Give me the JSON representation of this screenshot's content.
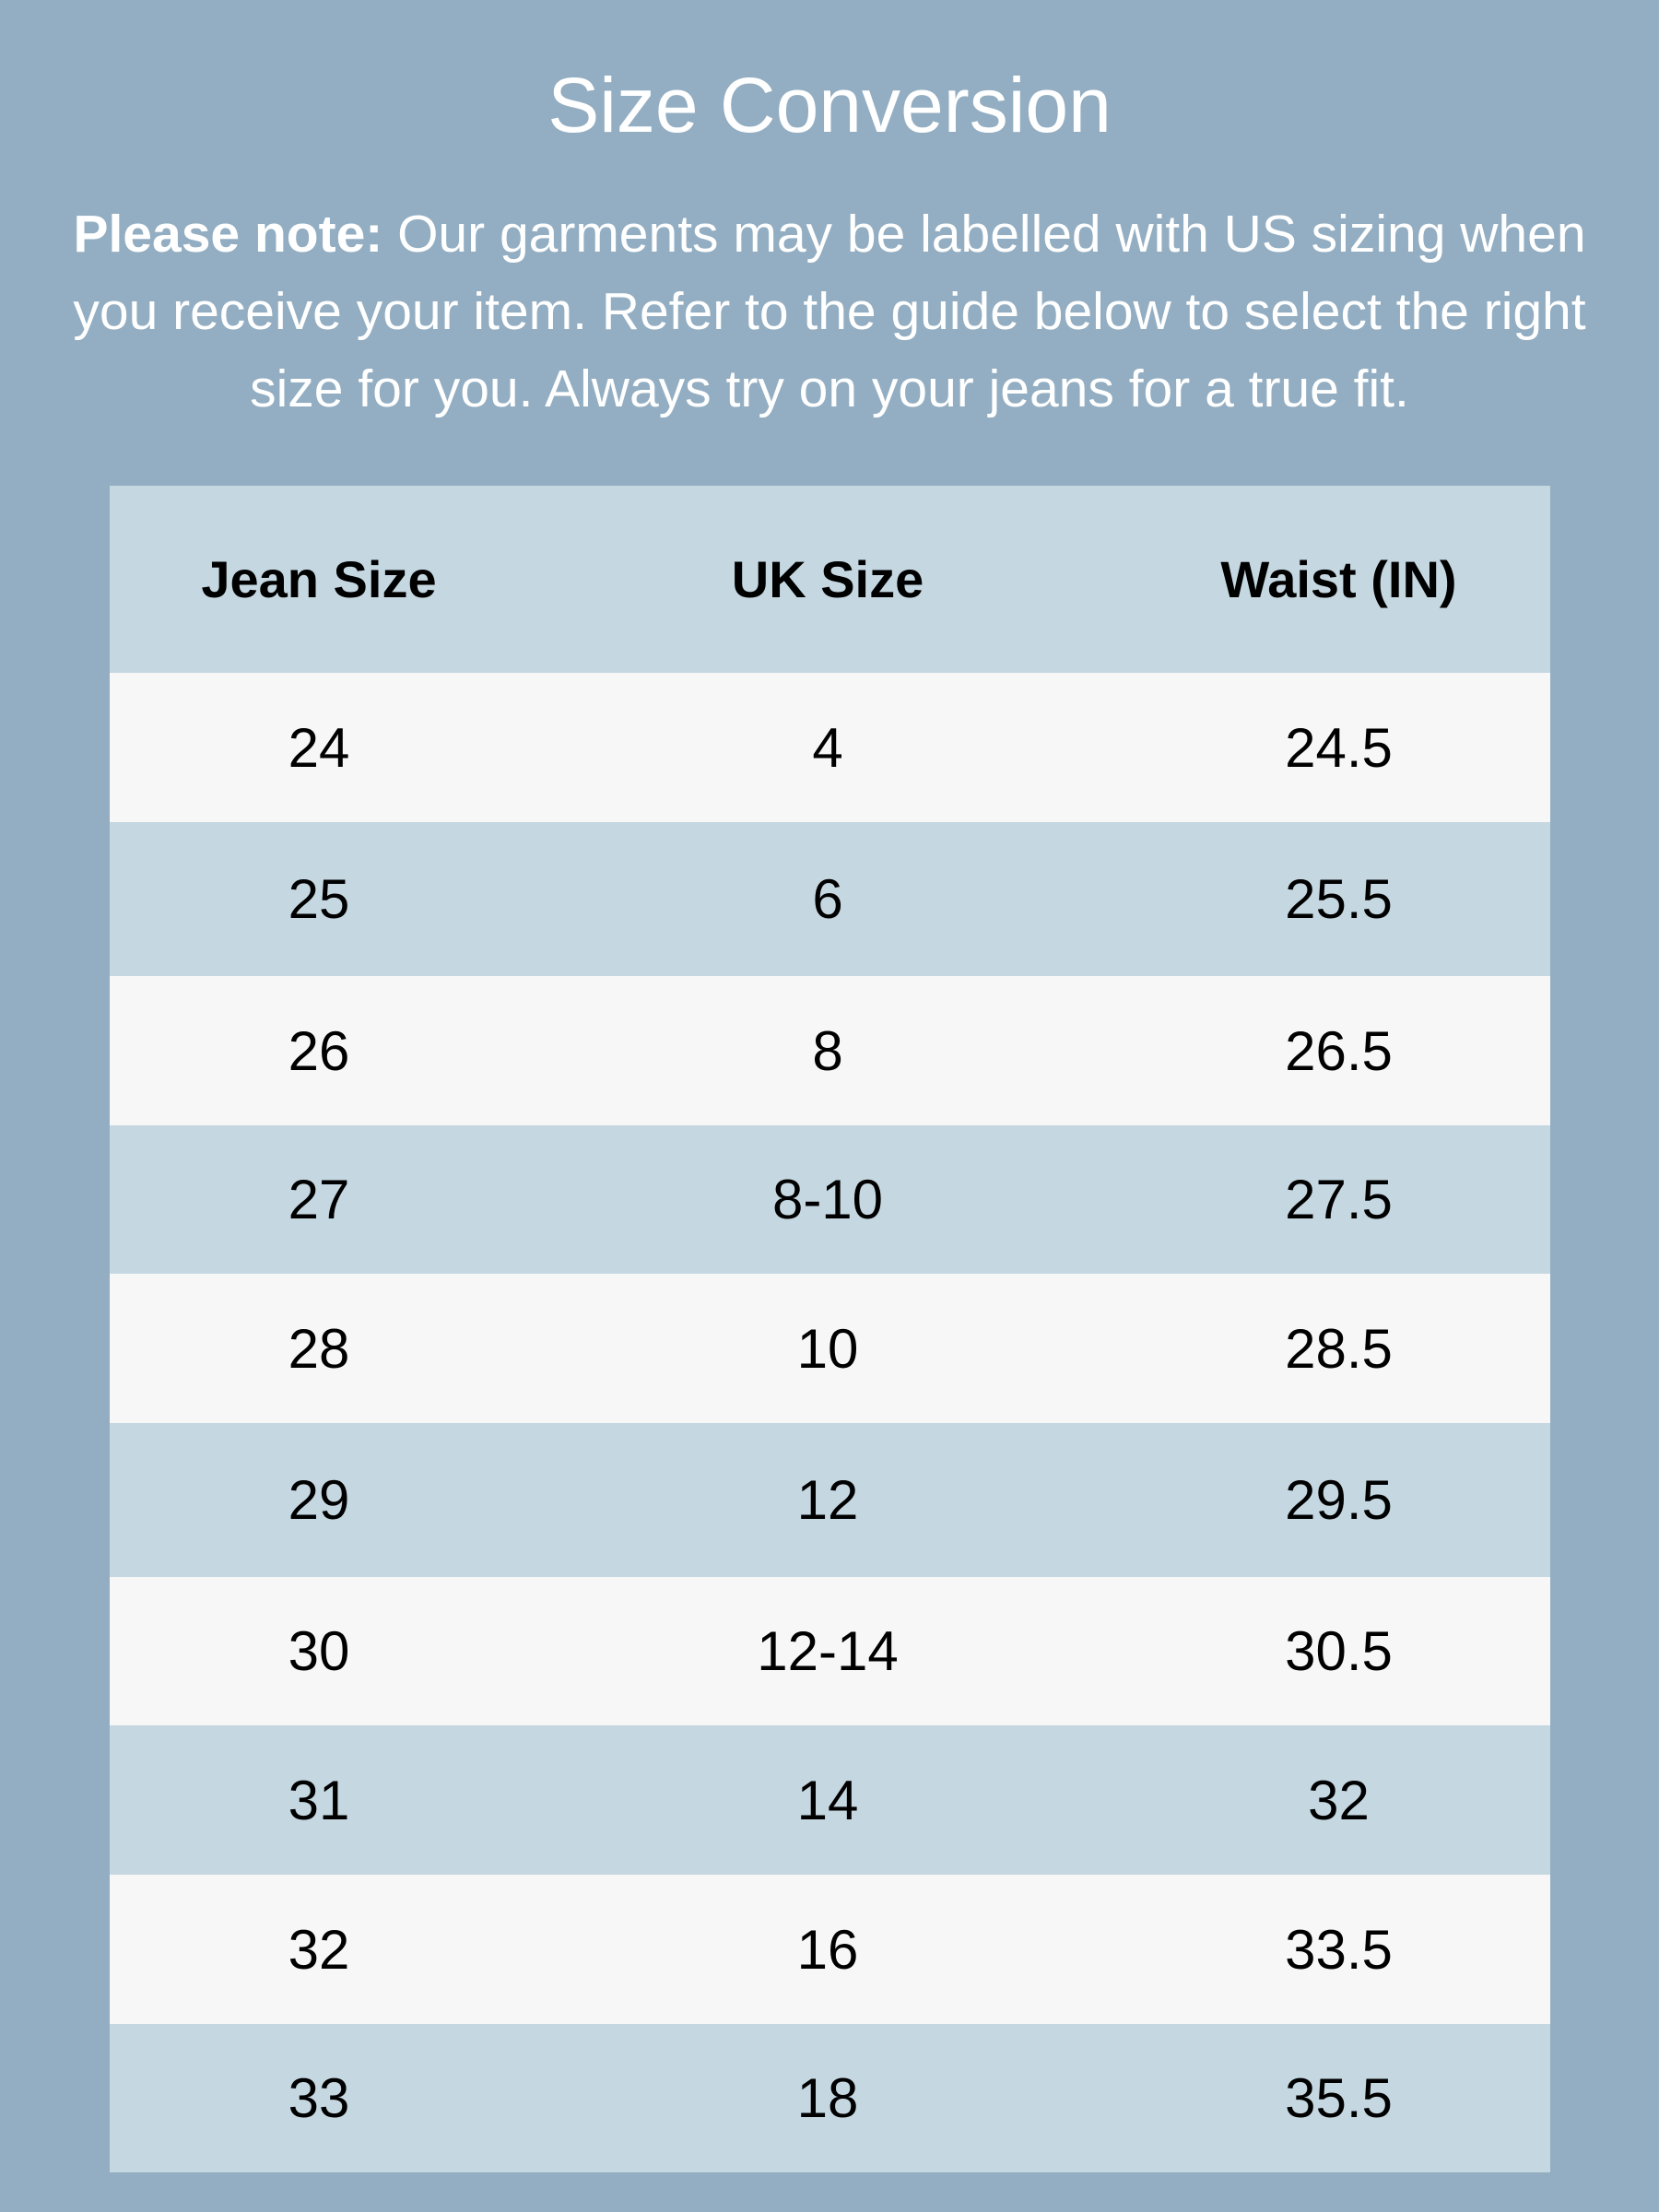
{
  "title": "Size Conversion",
  "note": {
    "label": "Please note:",
    "text": " Our garments may be labelled with US sizing when you receive your item. Refer to the guide below to select the right size for you. Always try on your jeans for a true fit."
  },
  "table": {
    "headers": [
      "Jean Size",
      "UK Size",
      "Waist (IN)"
    ],
    "rows": [
      [
        "24",
        "4",
        "24.5"
      ],
      [
        "25",
        "6",
        "25.5"
      ],
      [
        "26",
        "8",
        "26.5"
      ],
      [
        "27",
        "8-10",
        "27.5"
      ],
      [
        "28",
        "10",
        "28.5"
      ],
      [
        "29",
        "12",
        "29.5"
      ],
      [
        "30",
        "12-14",
        "30.5"
      ],
      [
        "31",
        "14",
        "32"
      ],
      [
        "32",
        "16",
        "33.5"
      ],
      [
        "33",
        "18",
        "35.5"
      ]
    ]
  },
  "colors": {
    "background": "#93aec2",
    "header": "#c5d7e1",
    "row_light": "#f7f7f7",
    "row_blue": "#c5d7e1"
  }
}
